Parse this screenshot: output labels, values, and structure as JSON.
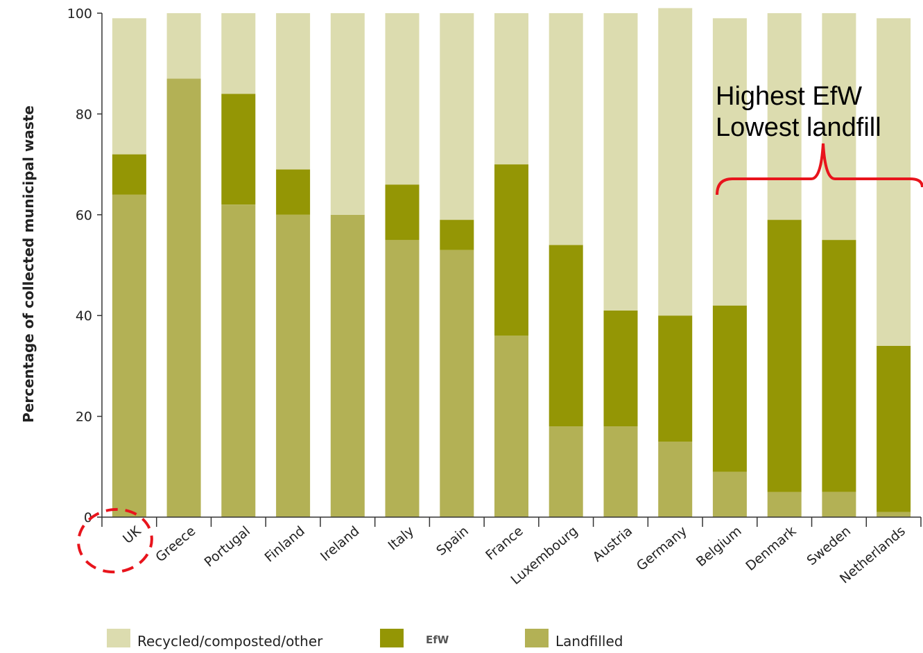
{
  "chart_data": {
    "type": "bar",
    "stacked": true,
    "ylabel": "Percentage of collected municipal waste",
    "ylim": [
      0,
      100
    ],
    "yticks": [
      "0",
      "20",
      "40",
      "60",
      "80",
      "100"
    ],
    "categories": [
      "UK",
      "Greece",
      "Portugal",
      "Finland",
      "Ireland",
      "Italy",
      "Spain",
      "France",
      "Luxembourg",
      "Austria",
      "Germany",
      "Belgium",
      "Denmark",
      "Sweden",
      "Netherlands"
    ],
    "series": [
      {
        "name": "Landfilled",
        "color": "#b3b155",
        "values": [
          64,
          87,
          62,
          60,
          60,
          55,
          53,
          36,
          18,
          18,
          15,
          9,
          5,
          5,
          1
        ]
      },
      {
        "name": "EfW",
        "color": "#949605",
        "values": [
          8,
          0,
          22,
          9,
          0,
          11,
          6,
          34,
          36,
          23,
          25,
          33,
          54,
          50,
          33
        ]
      },
      {
        "name": "Recycled/composted/other",
        "color": "#dcdcaf",
        "values": [
          27,
          13,
          16,
          31,
          40,
          34,
          41,
          30,
          46,
          59,
          61,
          57,
          41,
          45,
          65
        ]
      }
    ],
    "legend_order": [
      "Recycled/composted/other",
      "EfW",
      "Landfilled"
    ],
    "legend_position": "bottom",
    "annotations": {
      "text_line1": "Highest EfW",
      "text_line2": "Lowest landfill",
      "brace_color": "#e8141c",
      "circle_target": "UK",
      "circle_color": "#e8141c"
    }
  }
}
